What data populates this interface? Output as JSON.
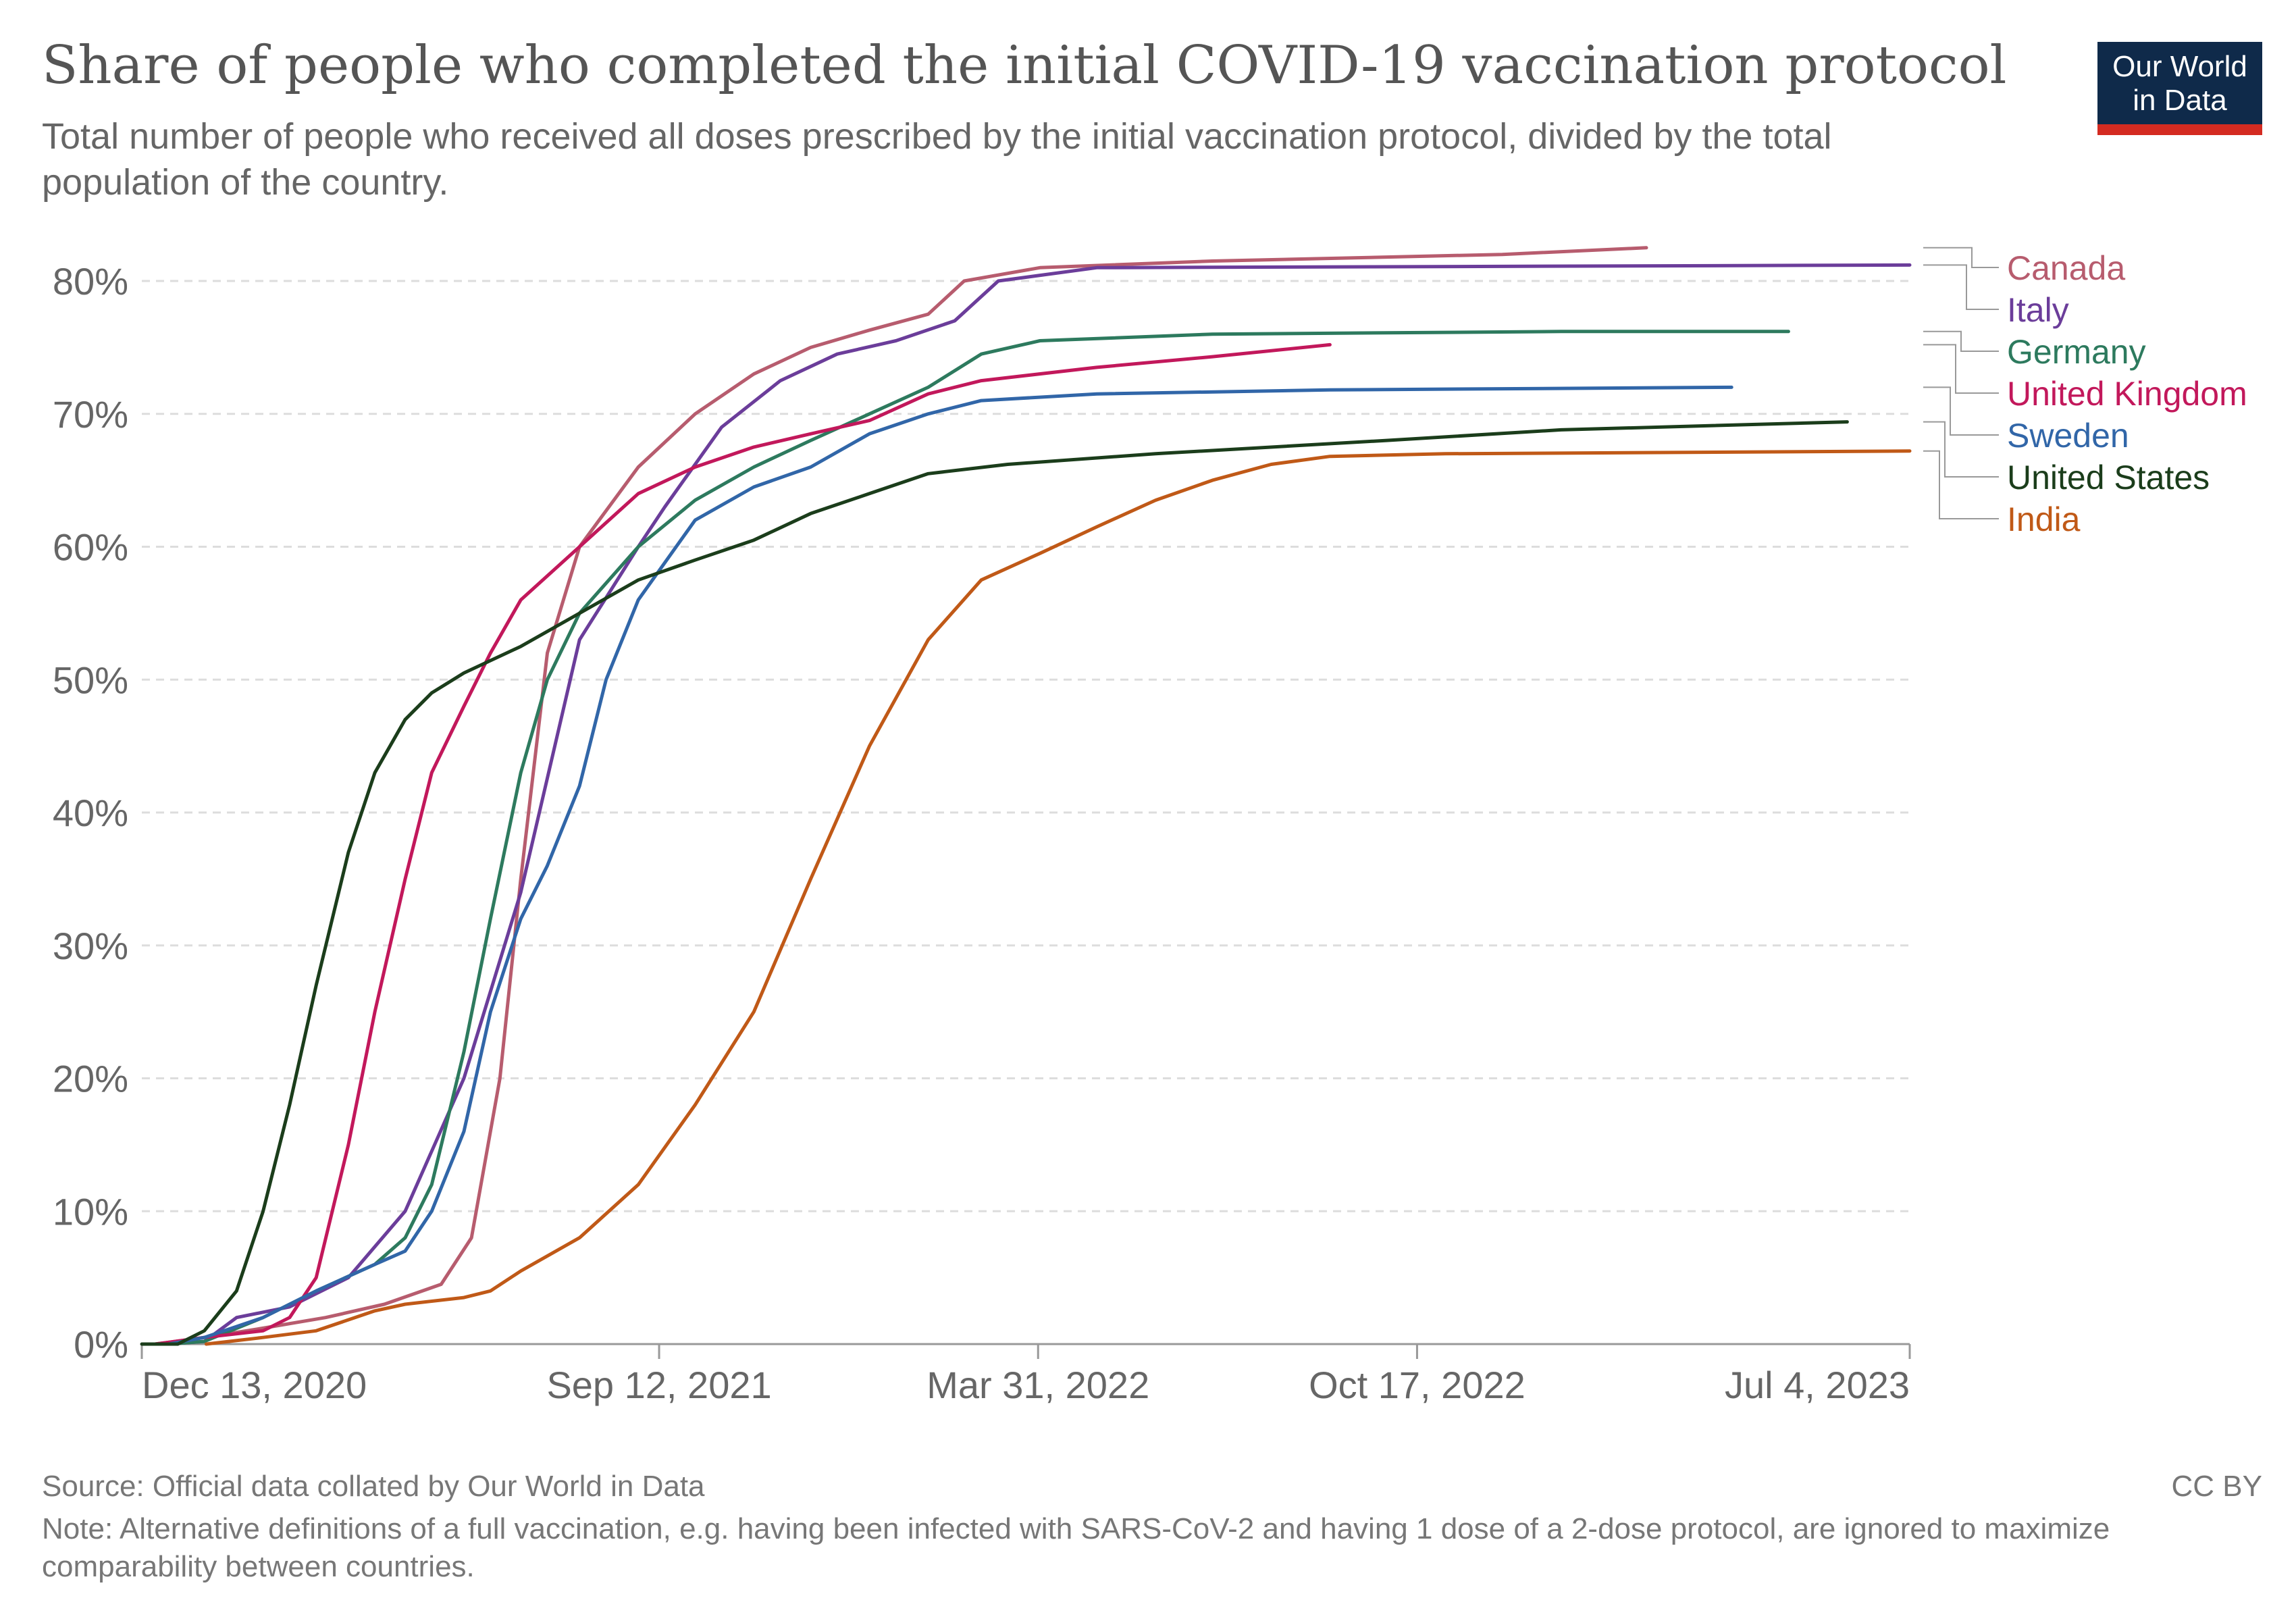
{
  "title": "Share of people who completed the initial COVID-19 vaccination protocol",
  "subtitle": "Total number of people who received all doses prescribed by the initial vaccination protocol, divided by the total population of the country.",
  "logo": {
    "line1": "Our World",
    "line2": "in Data"
  },
  "footer": {
    "source": "Source: Official data collated by Our World in Data",
    "license": "CC BY",
    "note": "Note: Alternative definitions of a full vaccination, e.g. having been infected with SARS-CoV-2 and having 1 dose of a 2-dose protocol, are ignored to maximize comparability between countries."
  },
  "chart_data": {
    "type": "line",
    "title": "Share of people who completed the initial COVID-19 vaccination protocol",
    "xlabel": "",
    "ylabel": "",
    "x_type": "date",
    "xlim": [
      "2020-12-13",
      "2023-07-04"
    ],
    "ylim": [
      0,
      80
    ],
    "y_unit": "%",
    "yticks": [
      0,
      10,
      20,
      30,
      40,
      50,
      60,
      70,
      80
    ],
    "y_tick_labels": [
      "0%",
      "10%",
      "20%",
      "30%",
      "40%",
      "50%",
      "60%",
      "70%",
      "80%"
    ],
    "xticks": [
      "2020-12-13",
      "2021-09-12",
      "2022-03-31",
      "2022-10-17",
      "2023-07-04"
    ],
    "x_tick_labels": [
      "Dec 13, 2020",
      "Sep 12, 2021",
      "Mar 31, 2022",
      "Oct 17, 2022",
      "Jul 4, 2023"
    ],
    "grid": "horizontal-dashed",
    "legend": "right-labels",
    "series": [
      {
        "name": "Canada",
        "color": "#b75c6e",
        "points": [
          [
            "2020-12-20",
            0
          ],
          [
            "2021-01-15",
            0.5
          ],
          [
            "2021-02-15",
            1.2
          ],
          [
            "2021-03-20",
            2
          ],
          [
            "2021-04-20",
            3
          ],
          [
            "2021-05-20",
            4.5
          ],
          [
            "2021-06-05",
            8
          ],
          [
            "2021-06-20",
            20
          ],
          [
            "2021-07-01",
            35
          ],
          [
            "2021-07-15",
            52
          ],
          [
            "2021-08-01",
            60
          ],
          [
            "2021-09-01",
            66
          ],
          [
            "2021-10-01",
            70
          ],
          [
            "2021-11-01",
            73
          ],
          [
            "2021-12-01",
            75
          ],
          [
            "2022-01-01",
            76.3
          ],
          [
            "2022-02-01",
            77.5
          ],
          [
            "2022-02-20",
            80
          ],
          [
            "2022-04-01",
            81
          ],
          [
            "2022-07-01",
            81.5
          ],
          [
            "2022-12-01",
            82
          ],
          [
            "2023-02-15",
            82.5
          ]
        ]
      },
      {
        "name": "Italy",
        "color": "#6b3d9a",
        "points": [
          [
            "2020-12-27",
            0
          ],
          [
            "2021-01-15",
            0.2
          ],
          [
            "2021-02-01",
            2
          ],
          [
            "2021-03-01",
            2.8
          ],
          [
            "2021-04-01",
            5
          ],
          [
            "2021-05-01",
            10
          ],
          [
            "2021-06-01",
            20
          ],
          [
            "2021-07-01",
            34
          ],
          [
            "2021-08-01",
            53
          ],
          [
            "2021-09-01",
            60
          ],
          [
            "2021-09-15",
            63
          ],
          [
            "2021-10-15",
            69
          ],
          [
            "2021-11-15",
            72.5
          ],
          [
            "2021-12-15",
            74.5
          ],
          [
            "2022-01-15",
            75.5
          ],
          [
            "2022-02-15",
            77
          ],
          [
            "2022-03-10",
            80
          ],
          [
            "2022-05-01",
            81
          ],
          [
            "2023-07-04",
            81.2
          ]
        ]
      },
      {
        "name": "Germany",
        "color": "#2d7a5e",
        "points": [
          [
            "2020-12-27",
            0
          ],
          [
            "2021-01-15",
            0.2
          ],
          [
            "2021-02-15",
            2
          ],
          [
            "2021-03-15",
            4
          ],
          [
            "2021-04-15",
            6
          ],
          [
            "2021-05-01",
            8
          ],
          [
            "2021-05-15",
            12
          ],
          [
            "2021-06-01",
            22
          ],
          [
            "2021-06-15",
            32
          ],
          [
            "2021-07-01",
            43
          ],
          [
            "2021-07-15",
            50
          ],
          [
            "2021-08-01",
            55
          ],
          [
            "2021-09-01",
            60
          ],
          [
            "2021-10-01",
            63.5
          ],
          [
            "2021-11-01",
            66
          ],
          [
            "2021-12-01",
            68
          ],
          [
            "2022-01-01",
            70
          ],
          [
            "2022-02-01",
            72
          ],
          [
            "2022-03-01",
            74.5
          ],
          [
            "2022-04-01",
            75.5
          ],
          [
            "2022-07-01",
            76
          ],
          [
            "2023-01-01",
            76.2
          ],
          [
            "2023-05-01",
            76.2
          ]
        ]
      },
      {
        "name": "United Kingdom",
        "color": "#c2185b",
        "points": [
          [
            "2020-12-20",
            0
          ],
          [
            "2021-01-15",
            0.5
          ],
          [
            "2021-02-15",
            1
          ],
          [
            "2021-03-01",
            2
          ],
          [
            "2021-03-15",
            5
          ],
          [
            "2021-04-01",
            15
          ],
          [
            "2021-04-15",
            25
          ],
          [
            "2021-05-01",
            35
          ],
          [
            "2021-05-15",
            43
          ],
          [
            "2021-06-01",
            48
          ],
          [
            "2021-06-15",
            52
          ],
          [
            "2021-07-01",
            56
          ],
          [
            "2021-08-01",
            60
          ],
          [
            "2021-09-01",
            64
          ],
          [
            "2021-10-01",
            66
          ],
          [
            "2021-11-01",
            67.5
          ],
          [
            "2021-12-01",
            68.5
          ],
          [
            "2022-01-01",
            69.5
          ],
          [
            "2022-02-01",
            71.5
          ],
          [
            "2022-03-01",
            72.5
          ],
          [
            "2022-05-01",
            73.5
          ],
          [
            "2022-07-01",
            74.3
          ],
          [
            "2022-09-01",
            75.2
          ]
        ]
      },
      {
        "name": "Sweden",
        "color": "#3166a8",
        "points": [
          [
            "2020-12-27",
            0
          ],
          [
            "2021-01-15",
            0.5
          ],
          [
            "2021-02-15",
            2
          ],
          [
            "2021-03-15",
            4
          ],
          [
            "2021-04-15",
            6
          ],
          [
            "2021-05-01",
            7
          ],
          [
            "2021-05-15",
            10
          ],
          [
            "2021-06-01",
            16
          ],
          [
            "2021-06-15",
            25
          ],
          [
            "2021-07-01",
            32
          ],
          [
            "2021-07-15",
            36
          ],
          [
            "2021-08-01",
            42
          ],
          [
            "2021-08-15",
            50
          ],
          [
            "2021-09-01",
            56
          ],
          [
            "2021-10-01",
            62
          ],
          [
            "2021-11-01",
            64.5
          ],
          [
            "2021-12-01",
            66
          ],
          [
            "2022-01-01",
            68.5
          ],
          [
            "2022-02-01",
            70
          ],
          [
            "2022-03-01",
            71
          ],
          [
            "2022-05-01",
            71.5
          ],
          [
            "2022-09-01",
            71.8
          ],
          [
            "2023-04-01",
            72
          ]
        ]
      },
      {
        "name": "United States",
        "color": "#1b3d1b",
        "points": [
          [
            "2020-12-13",
            0
          ],
          [
            "2021-01-01",
            0
          ],
          [
            "2021-01-15",
            1
          ],
          [
            "2021-02-01",
            4
          ],
          [
            "2021-02-15",
            10
          ],
          [
            "2021-03-01",
            18
          ],
          [
            "2021-03-15",
            27
          ],
          [
            "2021-04-01",
            37
          ],
          [
            "2021-04-15",
            43
          ],
          [
            "2021-05-01",
            47
          ],
          [
            "2021-05-15",
            49
          ],
          [
            "2021-06-01",
            50.5
          ],
          [
            "2021-07-01",
            52.5
          ],
          [
            "2021-08-01",
            55
          ],
          [
            "2021-09-01",
            57.5
          ],
          [
            "2021-10-01",
            59
          ],
          [
            "2021-11-01",
            60.5
          ],
          [
            "2021-12-01",
            62.5
          ],
          [
            "2022-01-01",
            64
          ],
          [
            "2022-02-01",
            65.5
          ],
          [
            "2022-03-15",
            66.2
          ],
          [
            "2022-06-01",
            67
          ],
          [
            "2022-10-01",
            68
          ],
          [
            "2023-01-01",
            68.8
          ],
          [
            "2023-06-01",
            69.4
          ]
        ]
      },
      {
        "name": "India",
        "color": "#c05917",
        "points": [
          [
            "2021-01-16",
            0
          ],
          [
            "2021-02-15",
            0.5
          ],
          [
            "2021-03-15",
            1
          ],
          [
            "2021-04-15",
            2.5
          ],
          [
            "2021-05-01",
            3
          ],
          [
            "2021-06-01",
            3.5
          ],
          [
            "2021-06-15",
            4
          ],
          [
            "2021-07-01",
            5.5
          ],
          [
            "2021-08-01",
            8
          ],
          [
            "2021-09-01",
            12
          ],
          [
            "2021-10-01",
            18
          ],
          [
            "2021-11-01",
            25
          ],
          [
            "2021-12-01",
            35
          ],
          [
            "2022-01-01",
            45
          ],
          [
            "2022-02-01",
            53
          ],
          [
            "2022-03-01",
            57.5
          ],
          [
            "2022-04-01",
            59.5
          ],
          [
            "2022-05-01",
            61.5
          ],
          [
            "2022-06-01",
            63.5
          ],
          [
            "2022-07-01",
            65
          ],
          [
            "2022-08-01",
            66.2
          ],
          [
            "2022-09-01",
            66.8
          ],
          [
            "2022-11-01",
            67
          ],
          [
            "2023-07-04",
            67.2
          ]
        ]
      }
    ]
  }
}
